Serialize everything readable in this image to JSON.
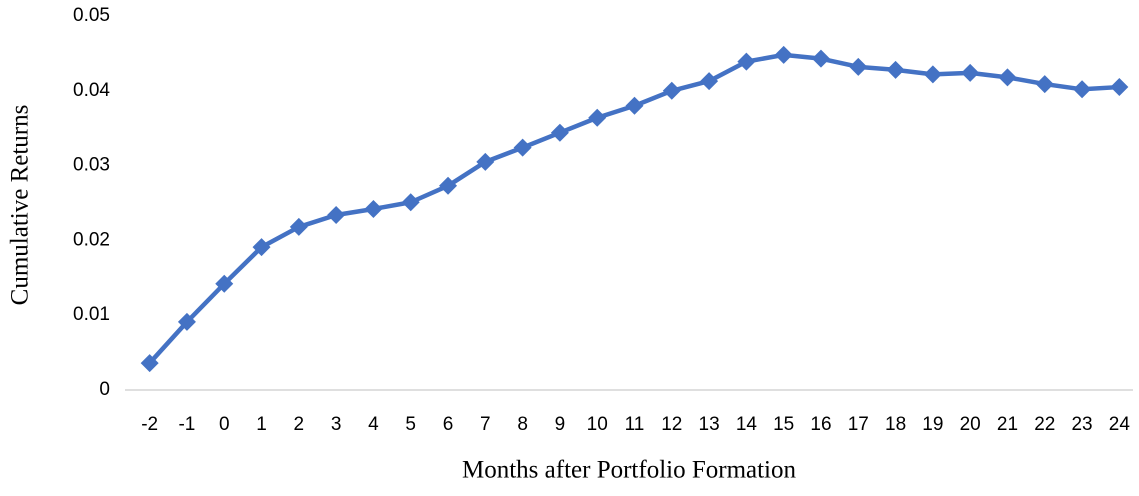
{
  "chart_data": {
    "type": "line",
    "x_label": "Months after Portfolio Formation",
    "y_label": "Cumulative Returns",
    "categories": [
      "-2",
      "-1",
      "0",
      "1",
      "2",
      "3",
      "4",
      "5",
      "6",
      "7",
      "8",
      "9",
      "10",
      "11",
      "12",
      "13",
      "14",
      "15",
      "16",
      "17",
      "18",
      "19",
      "20",
      "21",
      "22",
      "23",
      "24"
    ],
    "series": [
      {
        "name": "Cumulative Returns",
        "color": "#4472c4",
        "values": [
          0.0036,
          0.0091,
          0.0142,
          0.0191,
          0.0218,
          0.0234,
          0.0242,
          0.0251,
          0.0273,
          0.0305,
          0.0324,
          0.0344,
          0.0364,
          0.038,
          0.04,
          0.0413,
          0.0439,
          0.0448,
          0.0443,
          0.0432,
          0.0428,
          0.0422,
          0.0424,
          0.0418,
          0.0409,
          0.0402,
          0.0405
        ]
      }
    ],
    "ylim": [
      0,
      0.05
    ],
    "yticks": [
      0,
      0.01,
      0.02,
      0.03,
      0.04,
      0.05
    ],
    "grid": false
  }
}
